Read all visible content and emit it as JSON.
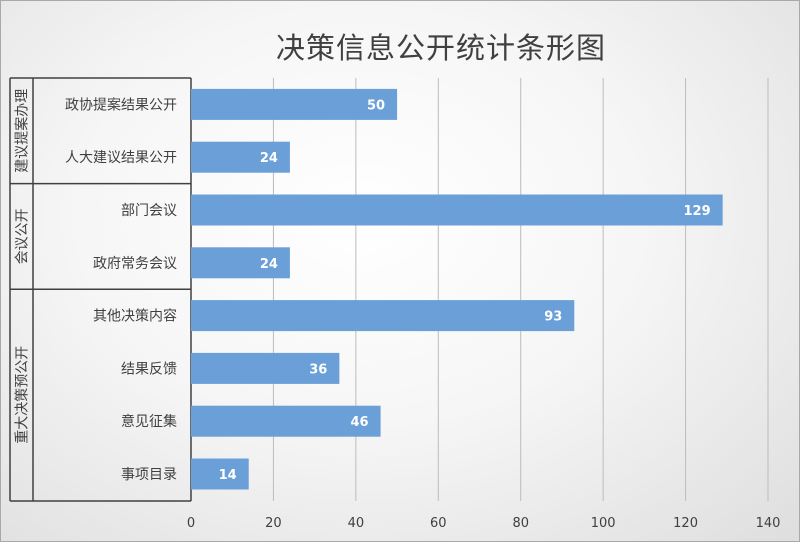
{
  "chart_data": {
    "type": "bar",
    "orientation": "horizontal",
    "title": "决策信息公开统计条形图",
    "xlabel": "",
    "ylabel": "",
    "xlim": [
      0,
      140
    ],
    "ticks": [
      "0",
      "20",
      "40",
      "60",
      "80",
      "100",
      "120",
      "140"
    ],
    "grid": true,
    "legend": "none",
    "bar_color": "#6a9fd8",
    "groups": [
      {
        "name": "建议提案办理",
        "categories": [
          "政协提案结果公开",
          "人大建议结果公开"
        ],
        "values": [
          50,
          24
        ]
      },
      {
        "name": "会议公开",
        "categories": [
          "部门会议",
          "政府常务会议"
        ],
        "values": [
          129,
          24
        ]
      },
      {
        "name": "重大决策预公开",
        "categories": [
          "其他决策内容",
          "结果反馈",
          "意见征集",
          "事项目录"
        ],
        "values": [
          93,
          36,
          46,
          14
        ]
      }
    ]
  }
}
